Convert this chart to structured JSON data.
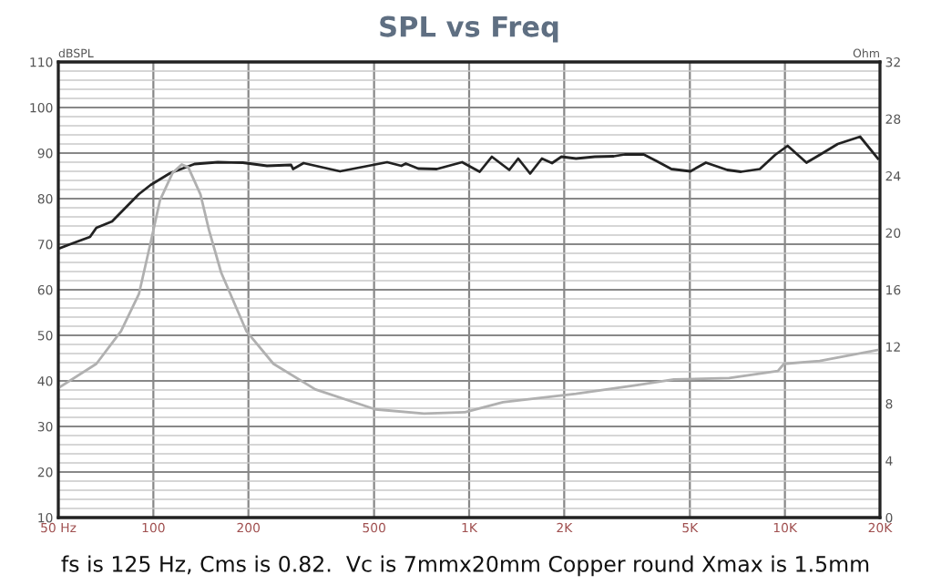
{
  "chart_data": {
    "type": "line",
    "title": "SPL vs Freq",
    "ylabel": "dBSPL",
    "y2label": "Ohm",
    "log": "x",
    "grid": true,
    "xlim": [
      50,
      20000
    ],
    "xticks": [
      {
        "value": 50,
        "label": "50 Hz"
      },
      100,
      200,
      500,
      {
        "value": 1000,
        "label": "1K"
      },
      {
        "value": 2000,
        "label": "2K"
      },
      {
        "value": 5000,
        "label": "5K"
      },
      {
        "value": 10000,
        "label": "10K"
      },
      {
        "value": 20000,
        "label": "20K"
      }
    ],
    "ylim": [
      10,
      110
    ],
    "yticks": [
      10,
      20,
      30,
      40,
      50,
      60,
      70,
      80,
      90,
      100,
      110
    ],
    "y2lim": [
      0,
      32
    ],
    "y2ticks": [
      0,
      4,
      8,
      12,
      16,
      20,
      24,
      28,
      32
    ],
    "series": [
      {
        "color": "#222222",
        "x": [
          50,
          56,
          63,
          66,
          74,
          90,
          98,
          113,
          135,
          160,
          192,
          229,
          273,
          277,
          299,
          390,
          550,
          610,
          630,
          690,
          790,
          950,
          1080,
          1180,
          1340,
          1430,
          1560,
          1700,
          1830,
          1960,
          2180,
          2500,
          2870,
          3110,
          3570,
          3910,
          4370,
          5020,
          5620,
          6570,
          7260,
          8330,
          9310,
          10200,
          11700,
          12880,
          14700,
          17300,
          19700
        ],
        "values": [
          69,
          70.3,
          71.6,
          73.6,
          75,
          81,
          83,
          85.6,
          87.6,
          88,
          87.9,
          87.2,
          87.4,
          86.5,
          87.8,
          86,
          88,
          87.2,
          87.7,
          86.6,
          86.5,
          88,
          85.9,
          89.2,
          86.3,
          88.8,
          85.5,
          88.8,
          87.8,
          89.2,
          88.8,
          89.2,
          89.3,
          89.7,
          89.7,
          88.3,
          86.5,
          86,
          87.9,
          86.3,
          85.9,
          86.5,
          89.6,
          91.6,
          87.9,
          89.6,
          92,
          93.6,
          88.8
        ]
      },
      {
        "color": "#b0b0b0",
        "axis": "y2",
        "x": [
          50,
          66,
          79,
          90,
          98,
          105,
          115,
          123,
          129,
          141,
          150,
          164,
          197,
          240,
          326,
          505,
          720,
          970,
          1280,
          2180,
          3400,
          4450,
          6660,
          9500,
          9930,
          12880,
          20000
        ],
        "values": [
          9.1,
          10.8,
          13.1,
          15.7,
          19.3,
          22.3,
          24.2,
          24.8,
          24.6,
          22.7,
          20.2,
          17.2,
          13.1,
          10.8,
          9.0,
          7.6,
          7.3,
          7.4,
          8.1,
          8.7,
          9.3,
          9.7,
          9.8,
          10.3,
          10.8,
          11.0,
          11.8
        ]
      }
    ],
    "annotations": [
      "fs is 125 Hz, Cms is 0.82.  Vc is 7mmx20mm Copper round Xmax is 1.5mm"
    ]
  }
}
